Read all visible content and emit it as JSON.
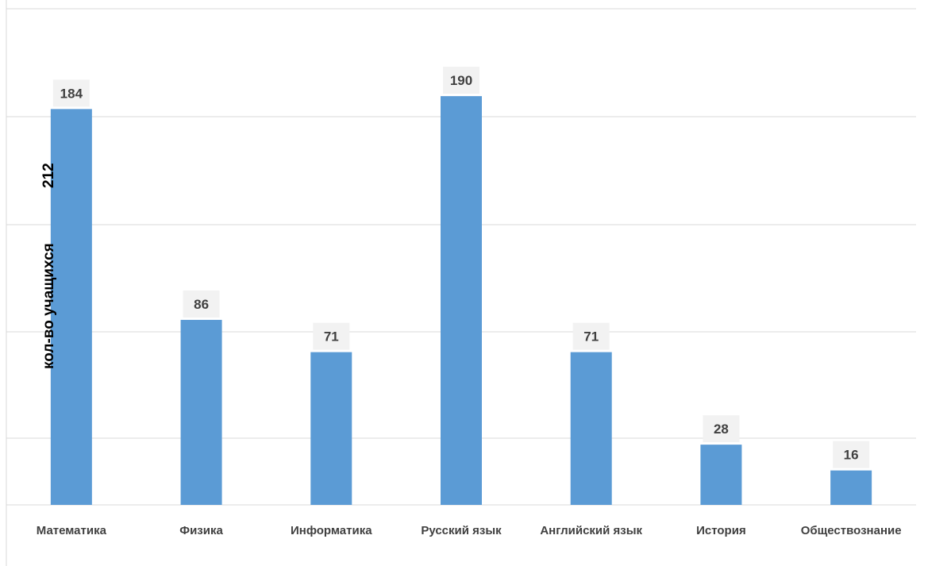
{
  "chart_data": {
    "type": "bar",
    "ylabel": "кол-во учащихся",
    "extra_label": "212",
    "categories": [
      "Математика",
      "Физика",
      "Информатика",
      "Русский язык",
      "Английский язык",
      "История",
      "Обществознание"
    ],
    "values": [
      184,
      86,
      71,
      190,
      71,
      28,
      16
    ],
    "ylim": [
      0,
      250
    ],
    "grid": true,
    "legend": "none",
    "colors": {
      "bar": "#5b9bd5",
      "grid": "#d9d9d9",
      "label_bg": "#f2f2f2",
      "text": "#404040"
    }
  }
}
